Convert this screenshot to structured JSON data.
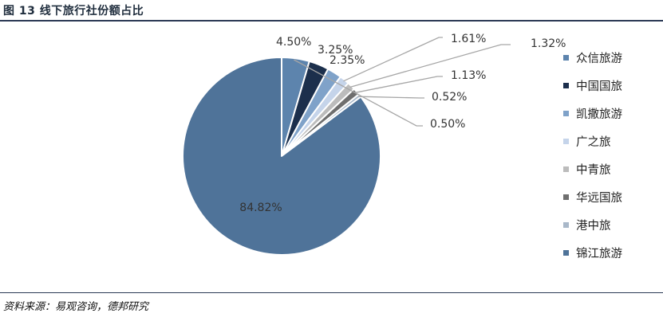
{
  "figure": {
    "title": "图 13 线下旅行社份额占比",
    "source": "资料来源：易观咨询，德邦研究"
  },
  "chart_data": {
    "type": "pie",
    "unit": "%",
    "legend_position": "right",
    "start_angle_deg": 0,
    "direction": "clockwise",
    "slices": [
      {
        "name": "众信旅游",
        "value": 4.5,
        "label": "4.50%",
        "color": "#5d84ad"
      },
      {
        "name": "中国国旅",
        "value": 3.25,
        "label": "3.25%",
        "color": "#1c2f4c"
      },
      {
        "name": "凯撒旅游",
        "value": 2.35,
        "label": "2.35%",
        "color": "#7fa2c9"
      },
      {
        "name": "广之旅",
        "value": 1.61,
        "label": "1.61%",
        "color": "#c5d4ea"
      },
      {
        "name": "中青旅",
        "value": 1.32,
        "label": "1.32%",
        "color": "#bcbcbc"
      },
      {
        "name": "华远国旅",
        "value": 1.13,
        "label": "1.13%",
        "color": "#6f6f6f"
      },
      {
        "name": "港中旅",
        "value": 0.52,
        "label": "0.52%",
        "color": "#a9b8c9"
      },
      {
        "name": "锦江旅游",
        "value": 84.82,
        "label": "84.82%",
        "color": "#4f7399"
      }
    ],
    "unlisted_label": "0.50%"
  }
}
